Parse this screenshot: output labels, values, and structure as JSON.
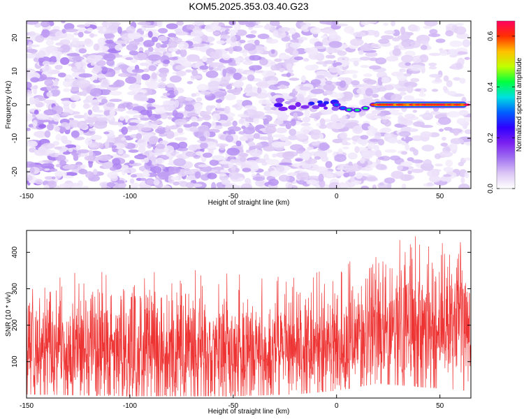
{
  "title": "KOM5.2025.353.03.40.G23",
  "chart_data": [
    {
      "type": "heatmap",
      "name": "spectrogram",
      "xlabel": "Height of straight line (km)",
      "ylabel": "Frequency (Hz)",
      "xlim": [
        -150,
        65
      ],
      "ylim": [
        -25,
        25
      ],
      "xticks": [
        -150,
        -100,
        -50,
        0,
        50
      ],
      "yticks": [
        -20,
        -10,
        0,
        10,
        20
      ],
      "colorbar": {
        "label": "Normalized spectral amplitude",
        "range": [
          0.0,
          0.66
        ],
        "ticks": [
          0.0,
          0.2,
          0.4,
          0.6
        ],
        "colormap": [
          "#ffffff",
          "#dcc7f5",
          "#a070f0",
          "#7a20f0",
          "#3000ff",
          "#0060ff",
          "#00e0e0",
          "#00ff40",
          "#c0ff00",
          "#ffc000",
          "#ff3000",
          "#ff0060"
        ]
      },
      "features": [
        {
          "name": "noise-background",
          "x_range": [
            -150,
            65
          ],
          "typical_amplitude": 0.05
        },
        {
          "name": "signal-onset",
          "x_range": [
            -30,
            0
          ],
          "frequency": 0,
          "amplitude": 0.15
        },
        {
          "name": "doppler-dip",
          "x_range": [
            5,
            15
          ],
          "frequency": -1.5,
          "amplitude": 0.4
        },
        {
          "name": "strong-carrier",
          "x_range": [
            18,
            63
          ],
          "frequency": 0,
          "amplitude": 0.66
        }
      ]
    },
    {
      "type": "line",
      "name": "snr",
      "xlabel": "Height of straight line (km)",
      "ylabel": "SNR (10 * v/v)",
      "xlim": [
        -150,
        65
      ],
      "ylim": [
        0,
        460
      ],
      "xticks": [
        -150,
        -100,
        -50,
        0,
        50
      ],
      "yticks": [
        100,
        200,
        300,
        400
      ],
      "color": "#ee3333",
      "trend": {
        "x": [
          -150,
          -100,
          -50,
          -20,
          0,
          20,
          40,
          65
        ],
        "y_mean": [
          130,
          120,
          115,
          125,
          140,
          170,
          190,
          195
        ],
        "y_max": [
          330,
          370,
          340,
          330,
          360,
          410,
          460,
          420
        ],
        "y_min": [
          10,
          5,
          5,
          10,
          20,
          40,
          30,
          20
        ]
      }
    }
  ]
}
